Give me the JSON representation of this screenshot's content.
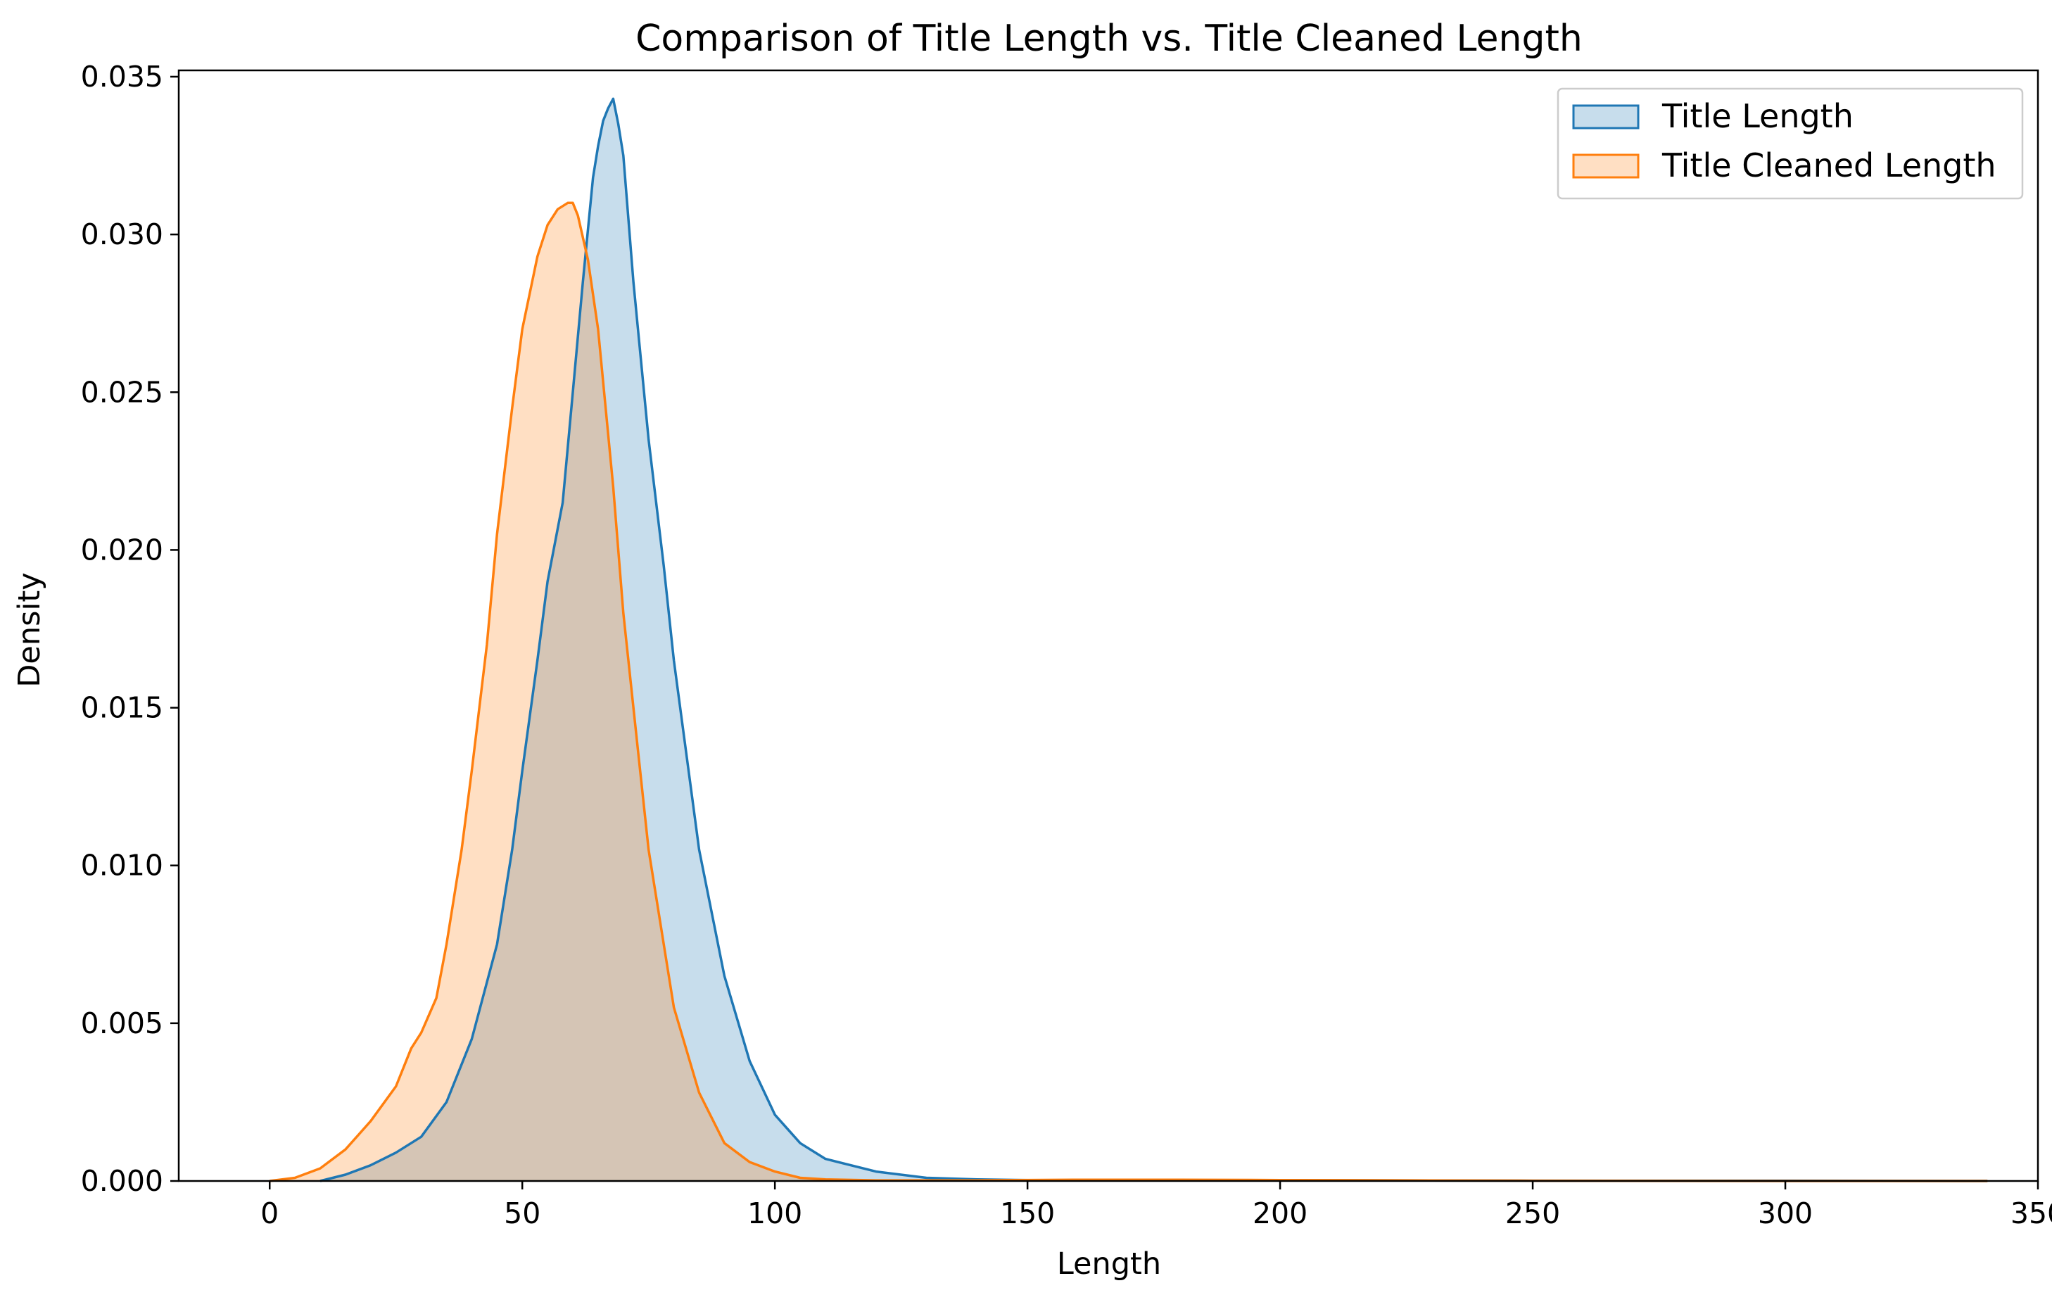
{
  "chart_data": {
    "type": "area",
    "title": "Comparison of Title Length vs. Title Cleaned Length",
    "xlabel": "Length",
    "ylabel": "Density",
    "xlim": [
      -18,
      350
    ],
    "ylim": [
      0,
      0.0352
    ],
    "xticks": [
      0,
      50,
      100,
      150,
      200,
      250,
      300,
      350
    ],
    "yticks": [
      0.0,
      0.005,
      0.01,
      0.015,
      0.02,
      0.025,
      0.03,
      0.035
    ],
    "xtick_labels": [
      "0",
      "50",
      "100",
      "150",
      "200",
      "250",
      "300",
      "350"
    ],
    "ytick_labels": [
      "0.000",
      "0.005",
      "0.010",
      "0.015",
      "0.020",
      "0.025",
      "0.030",
      "0.035"
    ],
    "grid": false,
    "legend_position": "top-right",
    "series": [
      {
        "name": "Title Length",
        "color": "#1f77b4",
        "fill": "#c8dbec",
        "x": [
          10,
          15,
          20,
          25,
          30,
          35,
          40,
          45,
          48,
          50,
          53,
          55,
          58,
          60,
          62,
          64,
          65,
          66,
          67,
          68,
          69,
          70,
          72,
          75,
          78,
          80,
          85,
          90,
          95,
          100,
          105,
          110,
          120,
          130,
          140,
          150,
          170,
          200,
          250,
          300,
          340
        ],
        "y": [
          0.0,
          0.0002,
          0.0005,
          0.0009,
          0.0014,
          0.0025,
          0.0045,
          0.0075,
          0.0105,
          0.013,
          0.0165,
          0.019,
          0.0215,
          0.025,
          0.0285,
          0.0318,
          0.0328,
          0.0336,
          0.034,
          0.0343,
          0.0335,
          0.0325,
          0.0285,
          0.0235,
          0.0195,
          0.0165,
          0.0105,
          0.0065,
          0.0038,
          0.0021,
          0.0012,
          0.0007,
          0.0003,
          0.0001,
          5e-05,
          3e-05,
          2e-05,
          3e-05,
          1e-05,
          1e-05,
          0.0
        ]
      },
      {
        "name": "Title Cleaned Length",
        "color": "#ff7f0e",
        "fill": "#ffd6b3",
        "x": [
          0,
          5,
          10,
          15,
          20,
          25,
          28,
          30,
          33,
          35,
          38,
          40,
          43,
          45,
          48,
          50,
          53,
          55,
          57,
          59,
          60,
          61,
          63,
          65,
          68,
          70,
          73,
          75,
          80,
          85,
          90,
          95,
          100,
          105,
          110,
          120,
          140,
          160,
          180,
          200,
          250,
          300,
          340
        ],
        "y": [
          0.0,
          0.0001,
          0.0004,
          0.001,
          0.0019,
          0.003,
          0.0042,
          0.0047,
          0.0058,
          0.0075,
          0.0105,
          0.013,
          0.017,
          0.0205,
          0.0245,
          0.027,
          0.0293,
          0.0303,
          0.0308,
          0.031,
          0.031,
          0.0306,
          0.0292,
          0.027,
          0.022,
          0.018,
          0.0135,
          0.0105,
          0.0055,
          0.0028,
          0.0012,
          0.0006,
          0.0003,
          0.0001,
          5e-05,
          2e-05,
          2e-05,
          4e-05,
          4e-05,
          3e-05,
          1e-05,
          0.0,
          0.0
        ]
      }
    ]
  }
}
